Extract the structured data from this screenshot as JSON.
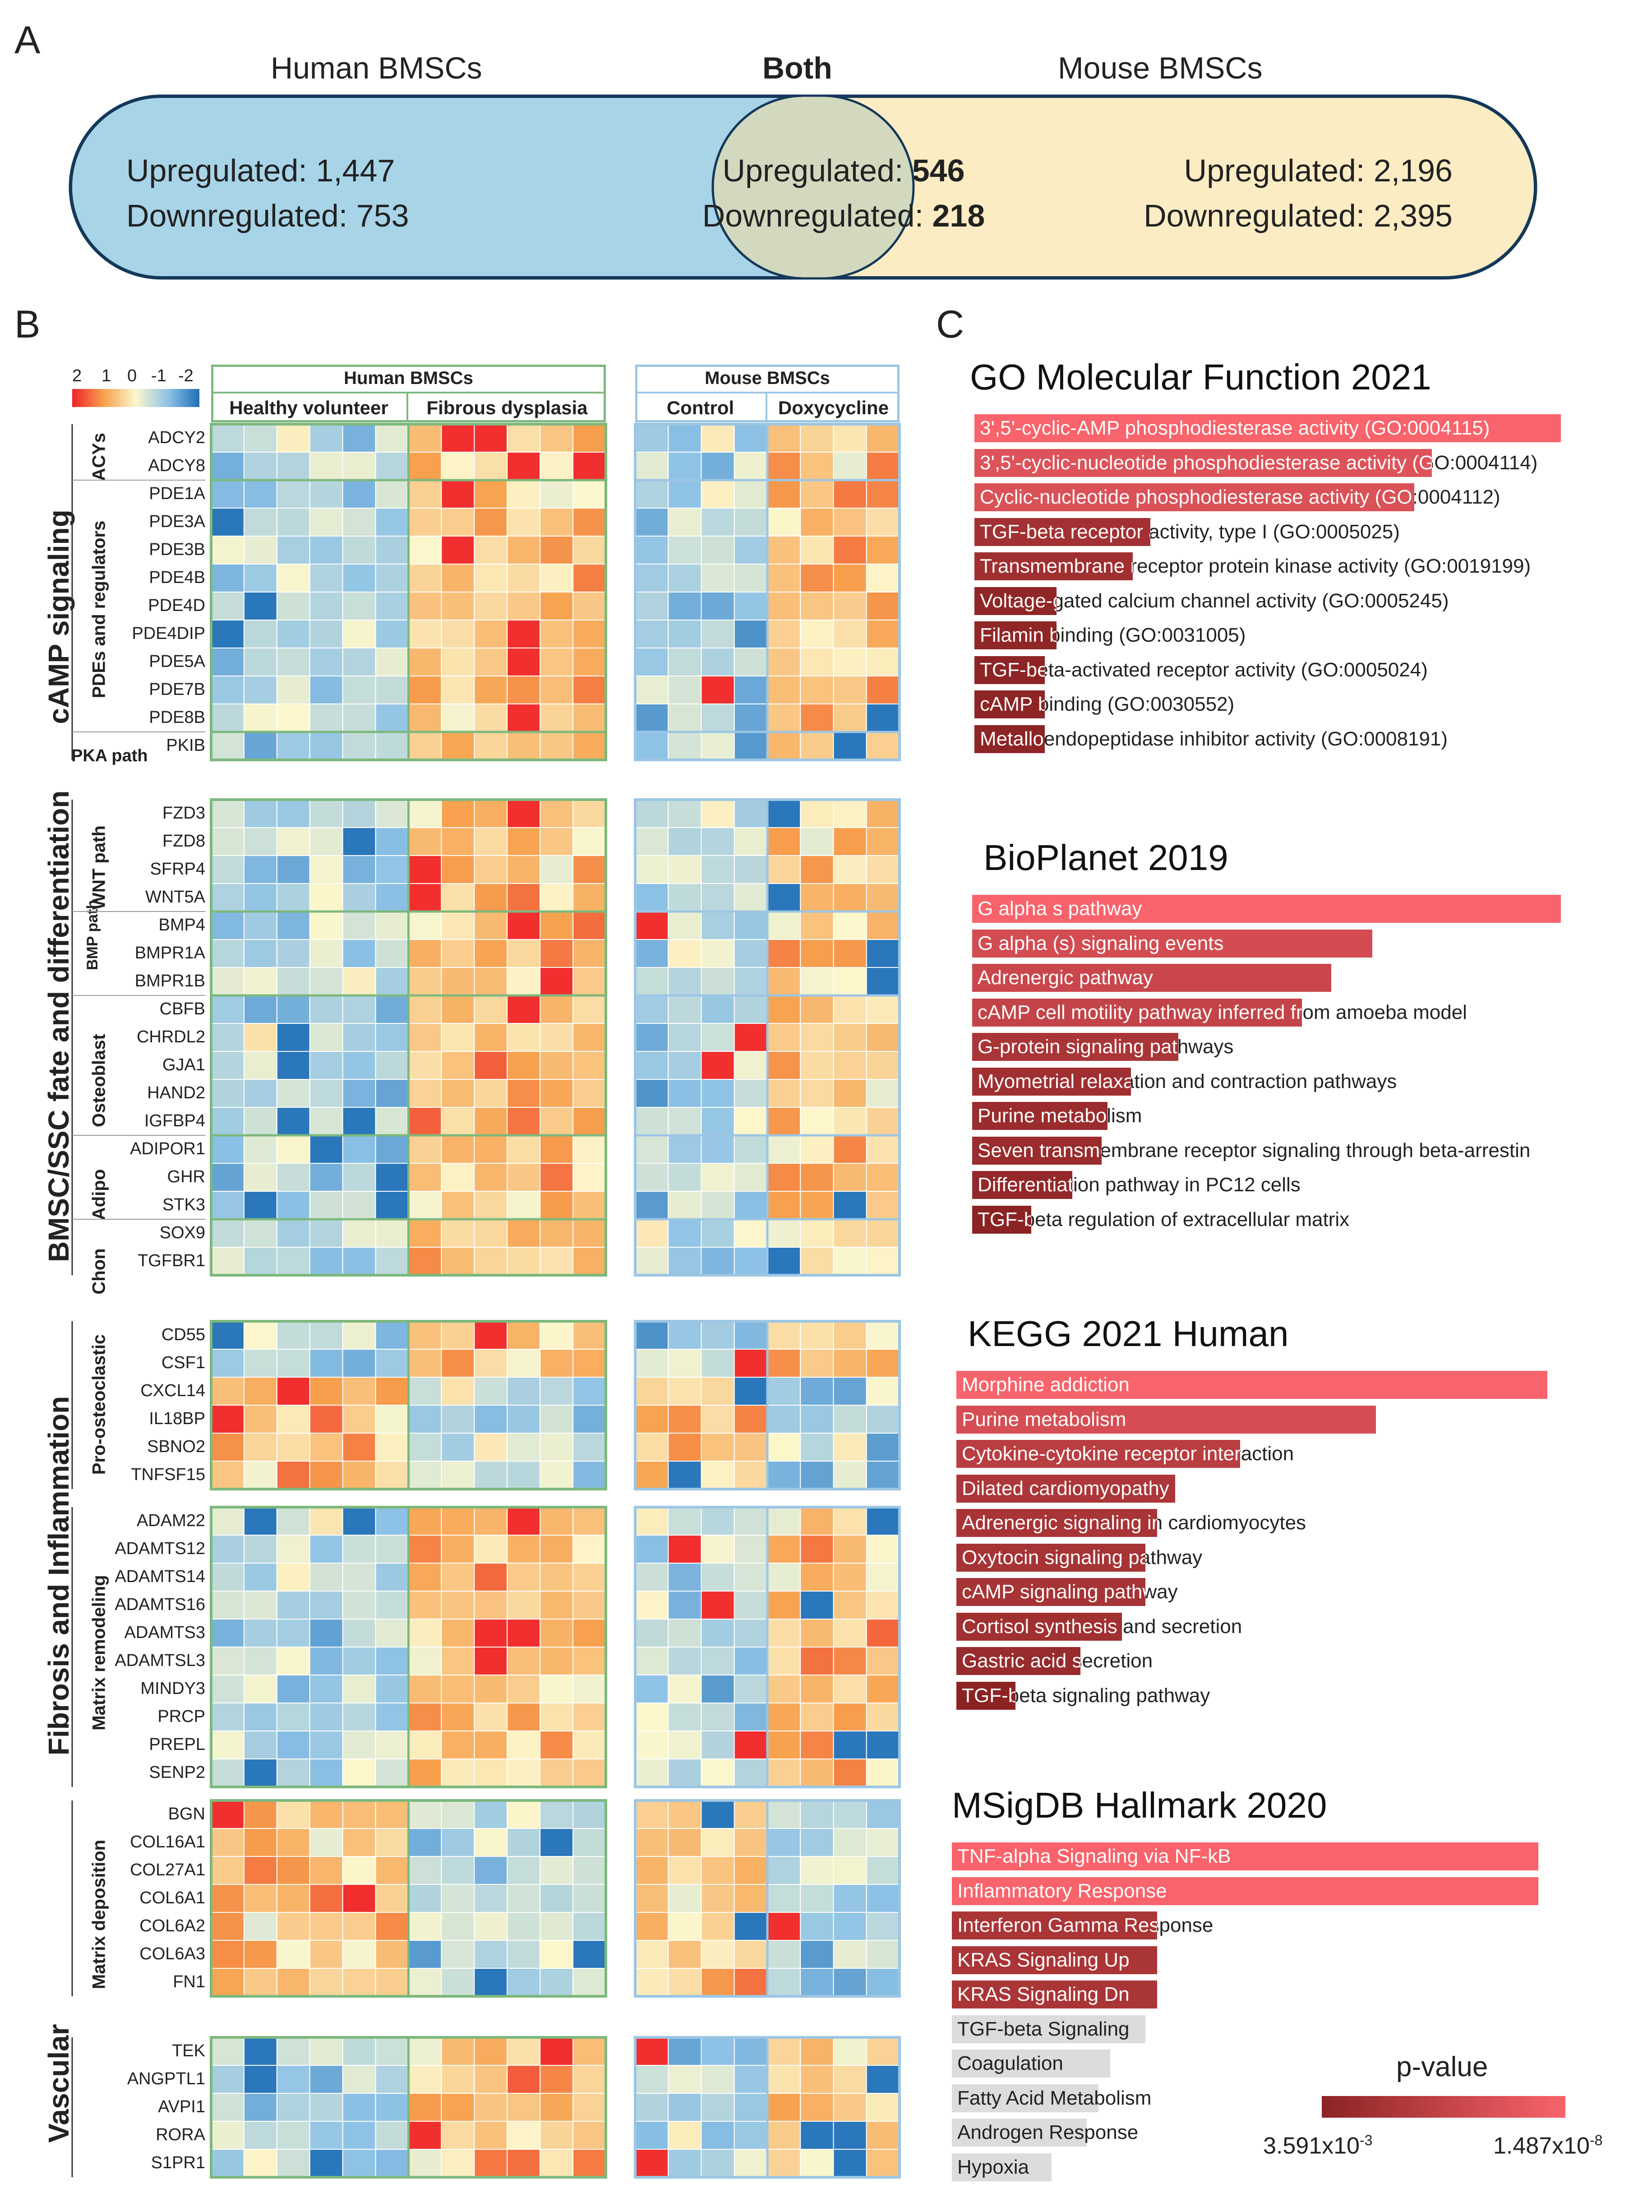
{
  "panel_labels": {
    "a": "A",
    "b": "B",
    "c": "C"
  },
  "venn": {
    "human_title": "Human BMSCs",
    "both_title": "Both",
    "mouse_title": "Mouse BMSCs",
    "human": {
      "up": "Upregulated: 1,447",
      "down": "Downregulated: 753"
    },
    "both": {
      "up_label": "Upregulated: ",
      "up_value": "546",
      "down_label": "Downregulated: ",
      "down_value": "218"
    },
    "mouse": {
      "up": "Upregulated: 2,196",
      "down": "Downregulated: 2,395"
    },
    "colors": {
      "human": "#a8d4e8",
      "both": "#d2d9bf",
      "mouse": "#fbecc4",
      "outline": "#14385a"
    }
  },
  "heatmap_legend": {
    "ticks": [
      "2",
      "1",
      "0",
      "-1",
      "-2"
    ]
  },
  "heatmap": {
    "human_title": "Human BMSCs",
    "mouse_title": "Mouse BMSCs",
    "human_groups": [
      "Healthy volunteer",
      "Fibrous dysplasia"
    ],
    "mouse_groups": [
      "Control",
      "Doxycycline"
    ],
    "section_labels": [
      "cAMP signaling",
      "BMSC/SSC fate and differentiation",
      "Fibrosis and Inflammation",
      "Vascular"
    ],
    "subgroup_labels": [
      "ACYs",
      "PDEs and regulators",
      "PKA path",
      "WNT path",
      "BMP path",
      "Osteoblast",
      "Adipo",
      "Chon",
      "Pro-osteoclastic",
      "Matrix remodeling",
      "Matrix deposition"
    ],
    "blocks": [
      {
        "genes": [
          "ADCY2",
          "ADCY8",
          "PDE1A",
          "PDE3A",
          "PDE3B",
          "PDE4B",
          "PDE4D",
          "PDE4DIP",
          "PDE5A",
          "PDE7B",
          "PDE8B",
          "PKIB"
        ]
      },
      {
        "genes": [
          "FZD3",
          "FZD8",
          "SFRP4",
          "WNT5A",
          "BMP4",
          "BMPR1A",
          "BMPR1B",
          "CBFB",
          "CHRDL2",
          "GJA1",
          "HAND2",
          "IGFBP4",
          "ADIPOR1",
          "GHR",
          "STK3",
          "SOX9",
          "TGFBR1"
        ]
      },
      {
        "genes": [
          "CD55",
          "CSF1",
          "CXCL14",
          "IL18BP",
          "SBNO2",
          "TNFSF15"
        ]
      },
      {
        "genes": [
          "ADAM22",
          "ADAMTS12",
          "ADAMTS14",
          "ADAMTS16",
          "ADAMTS3",
          "ADAMTSL3",
          "MINDY3",
          "PRCP",
          "PREPL",
          "SENP2"
        ]
      },
      {
        "genes": [
          "BGN",
          "COL16A1",
          "COL27A1",
          "COL6A1",
          "COL6A2",
          "COL6A3",
          "FN1"
        ]
      },
      {
        "genes": [
          "TEK",
          "ANGPTL1",
          "AVPI1",
          "RORA",
          "S1PR1"
        ]
      }
    ],
    "colors": {
      "human_frame": "#7db87d",
      "mouse_frame": "#9cc6e4",
      "high": "#f0222a",
      "mid": "#fcf7cc",
      "low": "#1f6fb6"
    }
  },
  "chart_data": {
    "type": "bar",
    "description_scale": {
      "title": "p-value",
      "left_label": "3.591x10",
      "left_exp": "-3",
      "right_label": "1.487x10",
      "right_exp": "-8",
      "dark_color": "#8b2323",
      "light_color": "#f9636b"
    },
    "panels": [
      {
        "title": "GO Molecular Function 2021",
        "terms": [
          {
            "label": "3',5'-cyclic-AMP phosphodiesterase activity (GO:0004115)",
            "value": 1.0,
            "sig": true
          },
          {
            "label": "3',5'-cyclic-nucleotide phosphodiesterase activity (GO:0004114)",
            "value": 0.78,
            "sig": true
          },
          {
            "label": "Cyclic-nucleotide phosphodiesterase activity (GO:0004112)",
            "value": 0.75,
            "sig": true
          },
          {
            "label": "TGF-beta receptor activity, type I (GO:0005025)",
            "value": 0.3,
            "sig": true
          },
          {
            "label": "Transmembrane receptor protein kinase activity (GO:0019199)",
            "value": 0.27,
            "sig": true
          },
          {
            "label": "Voltage-gated calcium channel activity (GO:0005245)",
            "value": 0.14,
            "sig": true
          },
          {
            "label": "Filamin binding (GO:0031005)",
            "value": 0.14,
            "sig": true
          },
          {
            "label": "TGF-beta-activated receptor activity (GO:0005024)",
            "value": 0.12,
            "sig": true
          },
          {
            "label": "cAMP binding (GO:0030552)",
            "value": 0.12,
            "sig": true
          },
          {
            "label": "Metalloendopeptidase inhibitor activity (GO:0008191)",
            "value": 0.12,
            "sig": true
          }
        ]
      },
      {
        "title": "BioPlanet 2019",
        "terms": [
          {
            "label": "G alpha s pathway",
            "value": 1.0,
            "sig": true
          },
          {
            "label": "G alpha (s) signaling events",
            "value": 0.68,
            "sig": true
          },
          {
            "label": "Adrenergic pathway",
            "value": 0.61,
            "sig": true
          },
          {
            "label": "cAMP cell motility pathway inferred from amoeba model",
            "value": 0.56,
            "sig": true
          },
          {
            "label": "G-protein signaling pathways",
            "value": 0.35,
            "sig": true
          },
          {
            "label": "Myometrial relaxation and contraction pathways",
            "value": 0.27,
            "sig": true
          },
          {
            "label": "Purine metabolism",
            "value": 0.23,
            "sig": true
          },
          {
            "label": "Seven transmembrane receptor signaling through beta-arrestin",
            "value": 0.22,
            "sig": true
          },
          {
            "label": "Differentiation pathway in PC12 cells",
            "value": 0.17,
            "sig": true
          },
          {
            "label": "TGF-beta regulation of extracellular matrix",
            "value": 0.1,
            "sig": true
          }
        ]
      },
      {
        "title": "KEGG 2021 Human",
        "terms": [
          {
            "label": "Morphine addiction",
            "value": 1.0,
            "sig": true
          },
          {
            "label": "Purine metabolism",
            "value": 0.71,
            "sig": true
          },
          {
            "label": "Cytokine-cytokine receptor interaction",
            "value": 0.48,
            "sig": true
          },
          {
            "label": "Dilated cardiomyopathy",
            "value": 0.37,
            "sig": true
          },
          {
            "label": "Adrenergic signaling in cardiomyocytes",
            "value": 0.34,
            "sig": true
          },
          {
            "label": "Oxytocin signaling pathway",
            "value": 0.32,
            "sig": true
          },
          {
            "label": "cAMP signaling pathway",
            "value": 0.32,
            "sig": true
          },
          {
            "label": "Cortisol synthesis and secretion",
            "value": 0.28,
            "sig": true
          },
          {
            "label": "Gastric acid secretion",
            "value": 0.21,
            "sig": true
          },
          {
            "label": "TGF-beta signaling pathway",
            "value": 0.1,
            "sig": true
          }
        ]
      },
      {
        "title": "MSigDB Hallmark 2020",
        "terms": [
          {
            "label": "TNF-alpha Signaling via NF-kB",
            "value": 1.0,
            "sig": true
          },
          {
            "label": "Inflammatory Response",
            "value": 1.0,
            "sig": true
          },
          {
            "label": "Interferon Gamma Response",
            "value": 0.35,
            "sig": true
          },
          {
            "label": "KRAS Signaling Up",
            "value": 0.35,
            "sig": true
          },
          {
            "label": "KRAS Signaling Dn",
            "value": 0.35,
            "sig": true
          },
          {
            "label": "TGF-beta Signaling",
            "value": 0.33,
            "sig": false
          },
          {
            "label": "Coagulation",
            "value": 0.27,
            "sig": false
          },
          {
            "label": "Fatty Acid Metabolism",
            "value": 0.25,
            "sig": false
          },
          {
            "label": "Androgen Response",
            "value": 0.23,
            "sig": false
          },
          {
            "label": "Hypoxia",
            "value": 0.17,
            "sig": false
          }
        ]
      }
    ]
  }
}
